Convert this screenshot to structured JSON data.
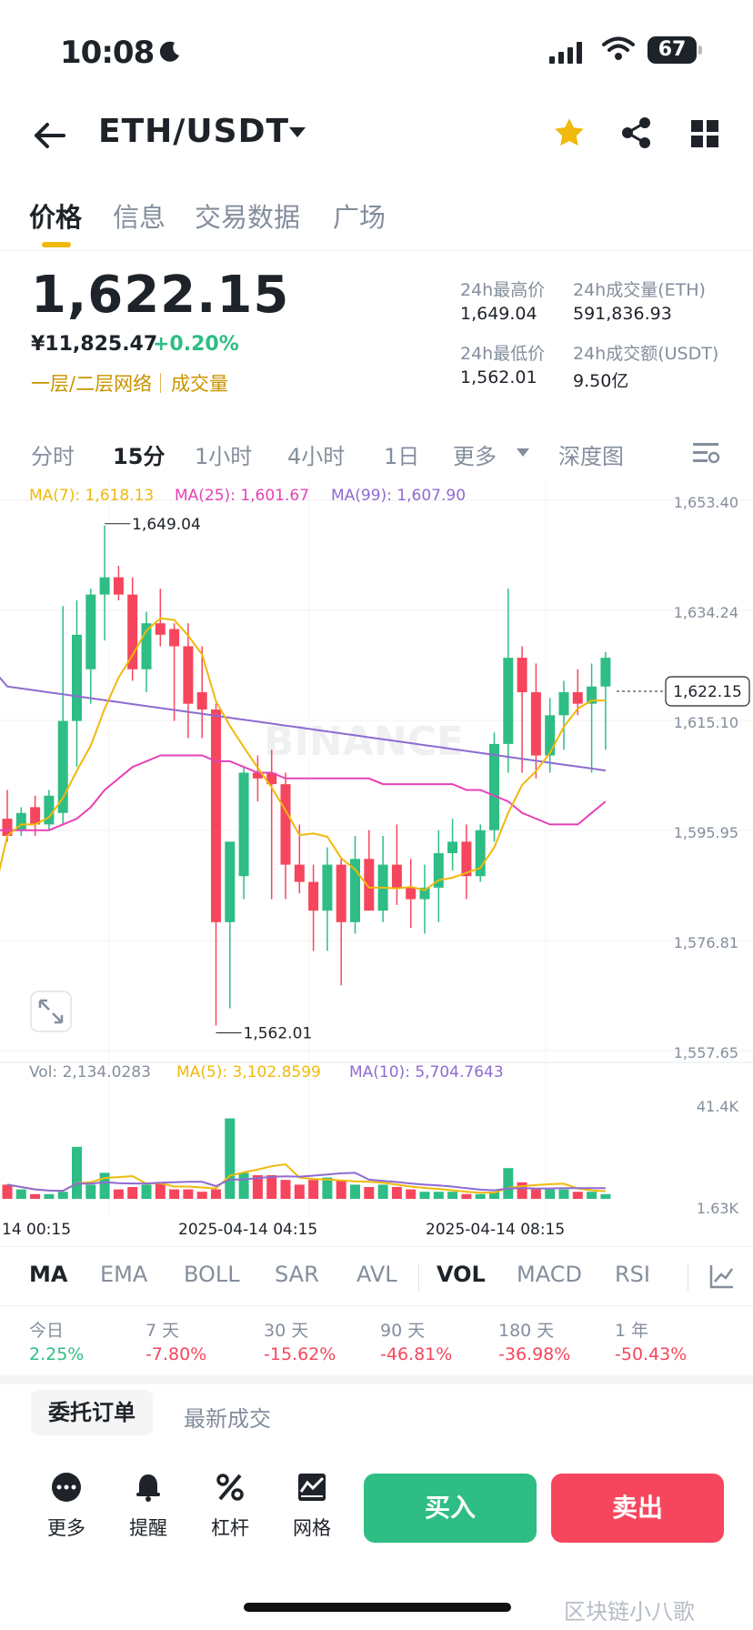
{
  "status": {
    "time": "10:08",
    "battery": "67"
  },
  "header": {
    "pair": "ETH/USDT"
  },
  "tabs": [
    "价格",
    "信息",
    "交易数据",
    "广场"
  ],
  "price": {
    "last": "1,622.15",
    "cny": "¥11,825.47",
    "change": "+0.20%",
    "network": "一层/二层网络",
    "volume_link": "成交量"
  },
  "stats": {
    "high_label": "24h最高价",
    "high": "1,649.04",
    "vol_eth_label": "24h成交量(ETH)",
    "vol_eth": "591,836.93",
    "low_label": "24h最低价",
    "low": "1,562.01",
    "vol_usdt_label": "24h成交额(USDT)",
    "vol_usdt": "9.50亿"
  },
  "intervals": [
    "分时",
    "15分",
    "1小时",
    "4小时",
    "1日",
    "更多",
    "深度图"
  ],
  "chart": {
    "ma7": "MA(7): 1,618.13",
    "ma25": "MA(25): 1,601.67",
    "ma99": "MA(99): 1,607.90",
    "y_ticks": [
      "1,653.40",
      "1,634.24",
      "1,615.10",
      "1,595.95",
      "1,576.81",
      "1,557.65"
    ],
    "current": "1,622.15",
    "high_mark": "1,649.04",
    "low_mark": "1,562.01",
    "vol_label": "Vol: 2,134.0283",
    "vol_ma5": "MA(5): 3,102.8599",
    "vol_ma10": "MA(10): 5,704.7643",
    "vol_ticks": [
      "41.4K",
      "1.63K"
    ],
    "x_ticks": [
      "14 00:15",
      "2025-04-14 04:15",
      "2025-04-14 08:15"
    ],
    "watermark": "BINANCE",
    "colors": {
      "up": "#2ebd85",
      "down": "#f6465d",
      "ma7": "#f0b90b",
      "ma25": "#e642b6",
      "ma99": "#8e6bd1"
    }
  },
  "indicators": [
    "MA",
    "EMA",
    "BOLL",
    "SAR",
    "AVL",
    "VOL",
    "MACD",
    "RSI"
  ],
  "performance": [
    {
      "label": "今日",
      "value": "2.25%"
    },
    {
      "label": "7 天",
      "value": "-7.80%"
    },
    {
      "label": "30 天",
      "value": "-15.62%"
    },
    {
      "label": "90 天",
      "value": "-46.81%"
    },
    {
      "label": "180 天",
      "value": "-36.98%"
    },
    {
      "label": "1 年",
      "value": "-50.43%"
    }
  ],
  "orders": {
    "tab1": "委托订单",
    "tab2": "最新成交"
  },
  "tools": [
    "更多",
    "提醒",
    "杠杆",
    "网格"
  ],
  "actions": {
    "buy": "买入",
    "sell": "卖出"
  },
  "footer_watermark": "区块链小八歌"
}
